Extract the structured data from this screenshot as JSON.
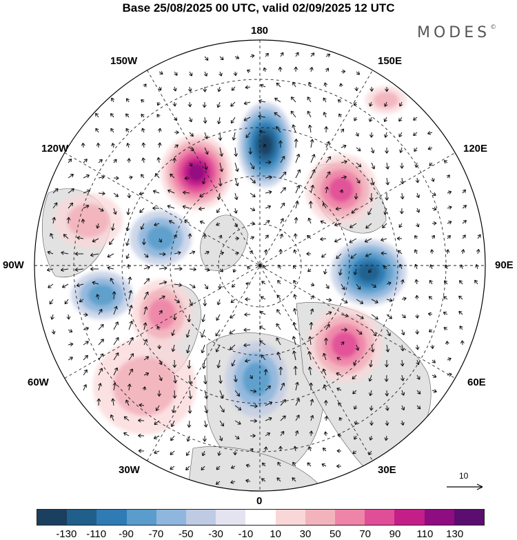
{
  "title": "Base 25/08/2025 00 UTC, valid 02/09/2025 12 UTC",
  "brand": {
    "name": "MODES",
    "mark": "©"
  },
  "map_labels": {
    "top": "180",
    "bottom": "0",
    "left": "90W",
    "right": "90E",
    "upper_left_outer": "150W",
    "upper_left_inner": "120W",
    "lower_left_inner": "60W",
    "lower_left_outer": "30W",
    "upper_right_outer": "150E",
    "upper_right_inner": "120E",
    "lower_right_inner": "60E",
    "lower_right_outer": "30E"
  },
  "vector_scale": {
    "label": "10"
  },
  "colorbar": {
    "ticks": [
      "-130",
      "-110",
      "-90",
      "-70",
      "-50",
      "-30",
      "-10",
      "10",
      "30",
      "50",
      "70",
      "90",
      "110",
      "130"
    ],
    "colors": [
      "#1b3f5e",
      "#1f5f8a",
      "#2f7bb4",
      "#5a9dcc",
      "#8fb7dd",
      "#bfcbe3",
      "#e4e3f0",
      "#ffffff",
      "#f9d7d8",
      "#f3b3bd",
      "#ee85a8",
      "#e04e97",
      "#c41f88",
      "#8e0d80",
      "#5c0d70"
    ]
  },
  "anomaly_centers": [
    {
      "sign": "negative",
      "strength": 130
    },
    {
      "sign": "positive",
      "strength": 110
    },
    {
      "sign": "positive",
      "strength": 70
    },
    {
      "sign": "negative",
      "strength": 90
    },
    {
      "sign": "positive",
      "strength": 70
    },
    {
      "sign": "negative",
      "strength": 60
    },
    {
      "sign": "positive",
      "strength": 30
    },
    {
      "sign": "negative",
      "strength": 60
    },
    {
      "sign": "positive",
      "strength": 50
    },
    {
      "sign": "negative",
      "strength": 50
    },
    {
      "sign": "positive",
      "strength": 30
    },
    {
      "sign": "positive",
      "strength": 30
    }
  ]
}
